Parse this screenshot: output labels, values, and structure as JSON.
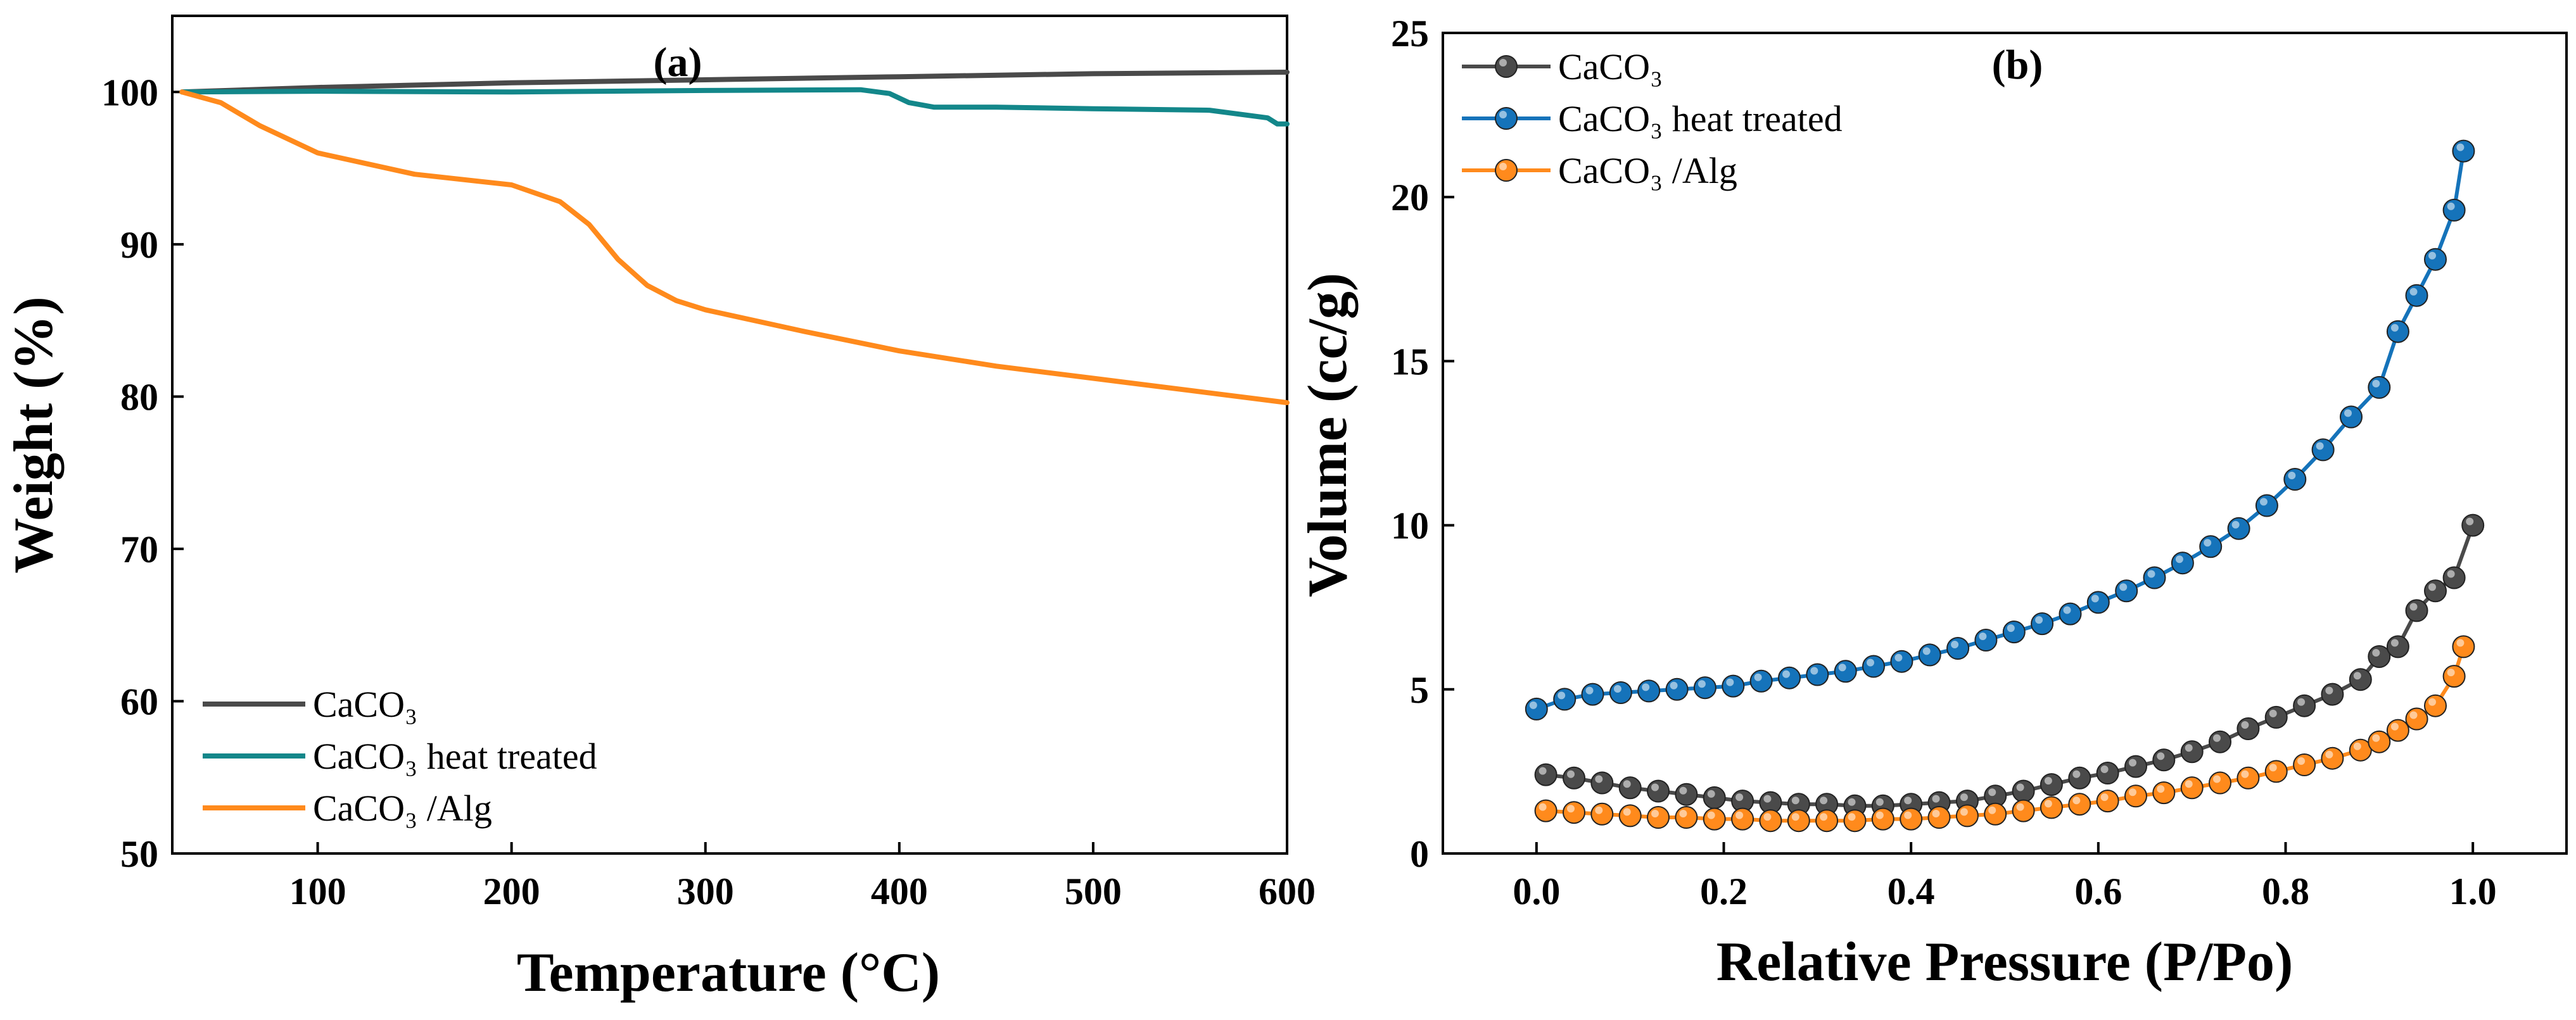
{
  "chart_data": [
    {
      "panel_label": "(a)",
      "type": "line",
      "xlabel": "Temperature (°C)",
      "ylabel": "Weight (%)",
      "xlim": [
        25,
        600
      ],
      "ylim": [
        50,
        105
      ],
      "xticks": [
        100,
        200,
        300,
        400,
        500,
        600
      ],
      "yticks": [
        50,
        60,
        70,
        80,
        90,
        100
      ],
      "grid": false,
      "legend": "bottom-left",
      "series": [
        {
          "name": "CaCO₃",
          "color": "#4a4a4a",
          "x": [
            30,
            100,
            200,
            300,
            400,
            500,
            600
          ],
          "y": [
            100.0,
            100.3,
            100.6,
            100.8,
            101.0,
            101.2,
            101.3
          ]
        },
        {
          "name": "CaCO₃ heat treated",
          "color": "#13878a",
          "x": [
            30,
            100,
            200,
            300,
            380,
            395,
            405,
            418,
            450,
            500,
            560,
            590,
            595,
            600
          ],
          "y": [
            100.0,
            100.05,
            100.0,
            100.1,
            100.15,
            99.9,
            99.3,
            99.0,
            99.0,
            98.9,
            98.8,
            98.3,
            97.9,
            97.9
          ]
        },
        {
          "name": "CaCO₃ /Alg",
          "color": "#ff8a1c",
          "x": [
            30,
            50,
            70,
            100,
            150,
            200,
            225,
            240,
            255,
            270,
            285,
            300,
            350,
            400,
            450,
            500,
            550,
            600
          ],
          "y": [
            100.0,
            99.3,
            97.8,
            96.0,
            94.6,
            93.9,
            92.8,
            91.3,
            89.0,
            87.3,
            86.3,
            85.7,
            84.3,
            83.0,
            82.0,
            81.2,
            80.4,
            79.6
          ]
        }
      ]
    },
    {
      "panel_label": "(b)",
      "type": "line",
      "xlabel": "Relative Pressure (P/Po)",
      "ylabel": "Volume (cc/g)",
      "xlim": [
        -0.1,
        1.1
      ],
      "ylim": [
        0,
        25
      ],
      "xticks": [
        0.0,
        0.2,
        0.4,
        0.6,
        0.8,
        1.0
      ],
      "xtick_labels": [
        "0.0",
        "0.2",
        "0.4",
        "0.6",
        "0.8",
        "1.0"
      ],
      "yticks": [
        0,
        5,
        10,
        15,
        20,
        25
      ],
      "grid": false,
      "legend": "top-left",
      "series": [
        {
          "name": "CaCO₃",
          "color": "#4a4a4a",
          "x": [
            0.01,
            0.04,
            0.07,
            0.1,
            0.13,
            0.16,
            0.19,
            0.22,
            0.25,
            0.28,
            0.31,
            0.34,
            0.37,
            0.4,
            0.43,
            0.46,
            0.49,
            0.52,
            0.55,
            0.58,
            0.61,
            0.64,
            0.67,
            0.7,
            0.73,
            0.76,
            0.79,
            0.82,
            0.85,
            0.88,
            0.9,
            0.92,
            0.94,
            0.96,
            0.98,
            1.0
          ],
          "y": [
            2.4,
            2.3,
            2.15,
            2.0,
            1.9,
            1.8,
            1.7,
            1.6,
            1.55,
            1.5,
            1.5,
            1.45,
            1.45,
            1.5,
            1.55,
            1.6,
            1.75,
            1.9,
            2.1,
            2.3,
            2.45,
            2.65,
            2.85,
            3.1,
            3.4,
            3.8,
            4.15,
            4.5,
            4.85,
            5.3,
            6.0,
            6.3,
            7.4,
            8.0,
            8.4,
            10.0
          ]
        },
        {
          "name": "CaCO₃ heat treated",
          "color": "#1573ba",
          "x": [
            0.0,
            0.03,
            0.06,
            0.09,
            0.12,
            0.15,
            0.18,
            0.21,
            0.24,
            0.27,
            0.3,
            0.33,
            0.36,
            0.39,
            0.42,
            0.45,
            0.48,
            0.51,
            0.54,
            0.57,
            0.6,
            0.63,
            0.66,
            0.69,
            0.72,
            0.75,
            0.78,
            0.81,
            0.84,
            0.87,
            0.9,
            0.92,
            0.94,
            0.96,
            0.98,
            0.99
          ],
          "y": [
            4.4,
            4.7,
            4.85,
            4.9,
            4.95,
            5.0,
            5.05,
            5.1,
            5.25,
            5.35,
            5.45,
            5.55,
            5.7,
            5.85,
            6.05,
            6.25,
            6.5,
            6.75,
            7.0,
            7.3,
            7.65,
            8.0,
            8.4,
            8.85,
            9.35,
            9.9,
            10.6,
            11.4,
            12.3,
            13.3,
            14.2,
            15.9,
            17.0,
            18.1,
            19.6,
            21.4
          ]
        },
        {
          "name": "CaCO₃ /Alg",
          "color": "#ff8a1c",
          "x": [
            0.01,
            0.04,
            0.07,
            0.1,
            0.13,
            0.16,
            0.19,
            0.22,
            0.25,
            0.28,
            0.31,
            0.34,
            0.37,
            0.4,
            0.43,
            0.46,
            0.49,
            0.52,
            0.55,
            0.58,
            0.61,
            0.64,
            0.67,
            0.7,
            0.73,
            0.76,
            0.79,
            0.82,
            0.85,
            0.88,
            0.9,
            0.92,
            0.94,
            0.96,
            0.98,
            0.99
          ],
          "y": [
            1.3,
            1.25,
            1.2,
            1.15,
            1.1,
            1.1,
            1.05,
            1.05,
            1.0,
            1.0,
            1.0,
            1.0,
            1.05,
            1.05,
            1.1,
            1.15,
            1.2,
            1.3,
            1.4,
            1.5,
            1.6,
            1.75,
            1.85,
            2.0,
            2.15,
            2.3,
            2.5,
            2.7,
            2.9,
            3.15,
            3.4,
            3.75,
            4.1,
            4.5,
            5.4,
            6.3
          ]
        }
      ]
    }
  ]
}
